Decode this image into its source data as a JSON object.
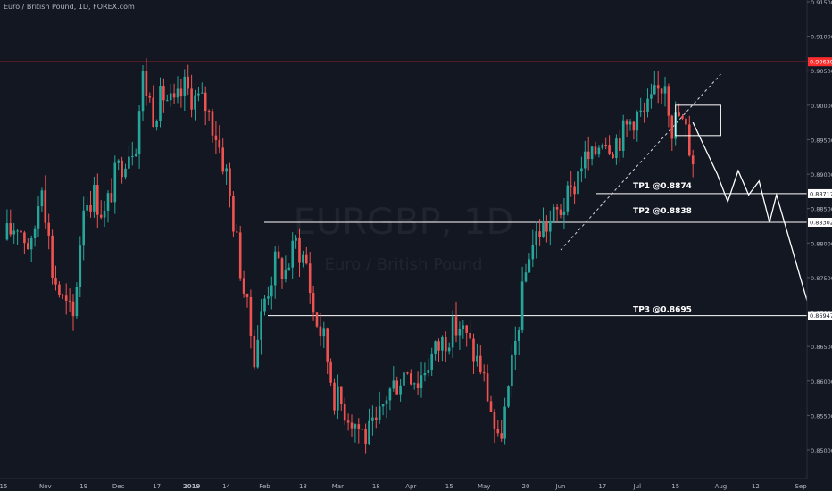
{
  "header": {
    "title": "Euro / British Pound, 1D, FOREX.com"
  },
  "watermark": {
    "symbol": "EURGBP, 1D",
    "description": "Euro / British Pound"
  },
  "colors": {
    "background": "#131722",
    "up": "#26a69a",
    "down": "#ef5350",
    "resistance": "#ff2e2e",
    "annotation": "#ffffff",
    "axis_text": "#b2b5be"
  },
  "chart_data": {
    "type": "candlestick",
    "title": "Euro / British Pound, 1D, FOREX.com",
    "y_axis": {
      "ylim": [
        0.8478,
        0.9133
      ],
      "ticks": [
        0.85,
        0.855,
        0.86,
        0.865,
        0.87,
        0.875,
        0.88,
        0.885,
        0.89,
        0.895,
        0.9,
        0.905,
        0.91,
        0.915
      ],
      "tick_labels": [
        "0.85000",
        "0.85500",
        "0.86000",
        "0.86500",
        "0.87000",
        "0.87500",
        "0.88000",
        "0.88500",
        "0.89000",
        "0.89500",
        "0.90000",
        "0.90500",
        "0.91000",
        "0.91500"
      ]
    },
    "x_axis": {
      "tick_labels": [
        "15",
        "Nov",
        "19",
        "Dec",
        "17",
        "2019",
        "14",
        "Feb",
        "18",
        "Mar",
        "18",
        "Apr",
        "15",
        "May",
        "20",
        "Jun",
        "17",
        "Jul",
        "15",
        "Aug",
        "12",
        "Sep"
      ],
      "tick_bar_index": [
        0,
        12,
        23,
        33,
        44,
        54,
        64,
        75,
        86,
        96,
        107,
        117,
        128,
        138,
        150,
        160,
        172,
        182,
        193,
        206,
        216,
        229
      ]
    },
    "price_path": [
      [
        0,
        0.8805
      ],
      [
        4,
        0.883
      ],
      [
        8,
        0.879
      ],
      [
        11,
        0.8895
      ],
      [
        14,
        0.876
      ],
      [
        17,
        0.8715
      ],
      [
        20,
        0.869
      ],
      [
        23,
        0.886
      ],
      [
        26,
        0.887
      ],
      [
        29,
        0.884
      ],
      [
        32,
        0.8895
      ],
      [
        35,
        0.893
      ],
      [
        38,
        0.895
      ],
      [
        40,
        0.904
      ],
      [
        43,
        0.899
      ],
      [
        46,
        0.9015
      ],
      [
        49,
        0.8995
      ],
      [
        52,
        0.9025
      ],
      [
        55,
        0.901
      ],
      [
        58,
        0.9
      ],
      [
        61,
        0.896
      ],
      [
        64,
        0.89
      ],
      [
        67,
        0.88
      ],
      [
        70,
        0.87
      ],
      [
        72,
        0.864
      ],
      [
        75,
        0.872
      ],
      [
        78,
        0.877
      ],
      [
        81,
        0.876
      ],
      [
        84,
        0.88
      ],
      [
        87,
        0.877
      ],
      [
        89,
        0.87
      ],
      [
        92,
        0.866
      ],
      [
        95,
        0.858
      ],
      [
        98,
        0.856
      ],
      [
        101,
        0.854
      ],
      [
        104,
        0.852
      ],
      [
        107,
        0.853
      ],
      [
        110,
        0.858
      ],
      [
        113,
        0.86
      ],
      [
        116,
        0.862
      ],
      [
        119,
        0.86
      ],
      [
        122,
        0.863
      ],
      [
        125,
        0.865
      ],
      [
        128,
        0.867
      ],
      [
        131,
        0.868
      ],
      [
        134,
        0.865
      ],
      [
        137,
        0.862
      ],
      [
        140,
        0.856
      ],
      [
        142,
        0.8505
      ],
      [
        145,
        0.858
      ],
      [
        148,
        0.869
      ],
      [
        151,
        0.879
      ],
      [
        154,
        0.882
      ],
      [
        157,
        0.883
      ],
      [
        160,
        0.885
      ],
      [
        163,
        0.887
      ],
      [
        166,
        0.892
      ],
      [
        169,
        0.892
      ],
      [
        172,
        0.896
      ],
      [
        175,
        0.8945
      ],
      [
        178,
        0.896
      ],
      [
        181,
        0.8985
      ],
      [
        184,
        0.8985
      ],
      [
        187,
        0.901
      ],
      [
        190,
        0.904
      ],
      [
        192,
        0.897
      ],
      [
        194,
        0.8985
      ],
      [
        196,
        0.896
      ],
      [
        198,
        0.8925
      ]
    ],
    "horizontal_lines": [
      {
        "price": 0.9063,
        "label": "0.90630",
        "color": "resistance"
      },
      {
        "price": 0.88717,
        "label": "0.88717",
        "color": "annotation"
      },
      {
        "price": 0.88302,
        "label": "0.88302",
        "color": "annotation"
      },
      {
        "price": 0.86947,
        "label": "0.86947",
        "color": "annotation"
      }
    ],
    "targets": [
      {
        "label": "TP1 @0.8874",
        "price": 0.8874
      },
      {
        "label": "TP2 @0.8838",
        "price": 0.8838
      },
      {
        "label": "TP3 @0.8695",
        "price": 0.8695
      }
    ],
    "trendline": {
      "from": [
        160,
        0.879
      ],
      "to": [
        206,
        0.9045
      ]
    },
    "entry_box": {
      "bar_from": 193,
      "bar_to": 206,
      "price_top": 0.9,
      "price_bottom": 0.8956
    },
    "projection_path": [
      [
        198,
        0.8975
      ],
      [
        205,
        0.89
      ],
      [
        208,
        0.886
      ],
      [
        211,
        0.8905
      ],
      [
        214,
        0.887
      ],
      [
        217,
        0.889
      ],
      [
        220,
        0.883
      ],
      [
        222,
        0.887
      ],
      [
        232,
        0.8695
      ]
    ]
  }
}
